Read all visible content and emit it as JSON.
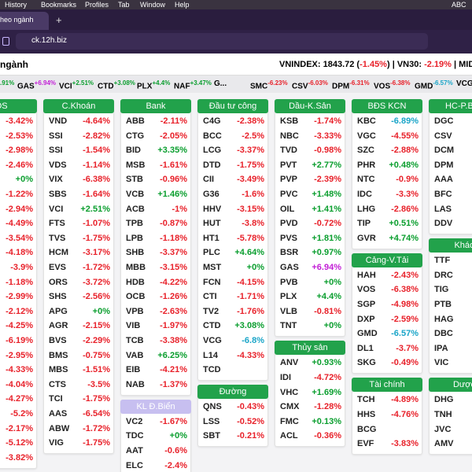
{
  "menu_bar": {
    "items": [
      "History",
      "Bookmarks",
      "Profiles",
      "Tab",
      "Window",
      "Help"
    ],
    "input": "ABC"
  },
  "browser": {
    "tab": "heo ngành",
    "new_tab": "+",
    "url": "ck.12h.biz"
  },
  "header": {
    "title": "ngành",
    "index_line": [
      {
        "text": "VNINDEX: 1843.72 ("
      },
      {
        "text": "-1.45%",
        "color": "#e8212a"
      },
      {
        "text": ") | VN30: "
      },
      {
        "text": "-2.19%",
        "color": "#e8212a"
      },
      {
        "text": " | MIDC"
      }
    ]
  },
  "ticker": [
    {
      "change": ".91%",
      "color": "#0a9e2e"
    },
    {
      "symbol": "GAS",
      "change": "+6.94%",
      "color": "#c21fd6"
    },
    {
      "symbol": "VCI",
      "change": "+2.51%",
      "color": "#0a9e2e"
    },
    {
      "symbol": "CTD",
      "change": "+3.08%",
      "color": "#0a9e2e"
    },
    {
      "symbol": "PLX",
      "change": "+4.4%",
      "color": "#0a9e2e"
    },
    {
      "symbol": "NAF",
      "change": "+3.47%",
      "color": "#0a9e2e"
    },
    {
      "symbol": "G..."
    },
    {
      "symbol": "SMC",
      "change": "-6.23%",
      "color": "#e8212a"
    },
    {
      "symbol": "CSV",
      "change": "-6.03%",
      "color": "#e8212a"
    },
    {
      "symbol": "DPM",
      "change": "-6.31%",
      "color": "#e8212a"
    },
    {
      "symbol": "VOS",
      "change": "-6.38%",
      "color": "#e8212a"
    },
    {
      "symbol": "GMD",
      "change": "-6.57%",
      "color": "#1aa5c8"
    },
    {
      "symbol": "VCG"
    }
  ],
  "columns": [
    {
      "sections": [
        {
          "title": "ĐS",
          "rows": [
            {
              "change": "-3.42%"
            },
            {
              "change": "-2.53%"
            },
            {
              "change": "-2.98%"
            },
            {
              "change": "-2.46%"
            },
            {
              "change": "+0%"
            },
            {
              "change": "-1.22%"
            },
            {
              "change": "-2.94%"
            },
            {
              "change": "-4.49%"
            },
            {
              "change": "-3.54%"
            },
            {
              "change": "-4.18%"
            },
            {
              "change": "-3.9%"
            },
            {
              "change": "-1.18%"
            },
            {
              "change": "-2.99%"
            },
            {
              "change": "-2.12%"
            },
            {
              "change": "-4.25%"
            },
            {
              "change": "-6.19%"
            },
            {
              "change": "-2.95%"
            },
            {
              "change": "-4.33%"
            },
            {
              "change": "-4.04%"
            },
            {
              "change": "-4.27%"
            },
            {
              "change": "-5.2%"
            },
            {
              "change": "-2.17%"
            },
            {
              "change": "-5.12%"
            },
            {
              "change": "-3.82%"
            }
          ]
        }
      ]
    },
    {
      "sections": [
        {
          "title": "C.Khoán",
          "rows": [
            {
              "symbol": "VND",
              "change": "-4.64%"
            },
            {
              "symbol": "SSI",
              "change": "-2.82%"
            },
            {
              "symbol": "SSI",
              "change": "-1.54%"
            },
            {
              "symbol": "VDS",
              "change": "-1.14%"
            },
            {
              "symbol": "VIX",
              "change": "-6.38%"
            },
            {
              "symbol": "SBS",
              "change": "-1.64%"
            },
            {
              "symbol": "VCI",
              "change": "+2.51%"
            },
            {
              "symbol": "FTS",
              "change": "-1.07%"
            },
            {
              "symbol": "TVS",
              "change": "-1.75%"
            },
            {
              "symbol": "HCM",
              "change": "-3.17%"
            },
            {
              "symbol": "EVS",
              "change": "-1.72%"
            },
            {
              "symbol": "ORS",
              "change": "-3.72%"
            },
            {
              "symbol": "SHS",
              "change": "-2.56%"
            },
            {
              "symbol": "APG",
              "change": "+0%"
            },
            {
              "symbol": "AGR",
              "change": "-2.15%"
            },
            {
              "symbol": "BVS",
              "change": "-2.29%"
            },
            {
              "symbol": "BMS",
              "change": "-0.75%"
            },
            {
              "symbol": "MBS",
              "change": "-1.51%"
            },
            {
              "symbol": "CTS",
              "change": "-3.5%"
            },
            {
              "symbol": "TCI",
              "change": "-1.75%"
            },
            {
              "symbol": "AAS",
              "change": "-6.54%"
            },
            {
              "symbol": "ABW",
              "change": "-1.72%"
            },
            {
              "symbol": "VIG",
              "change": "-1.75%"
            }
          ]
        }
      ]
    },
    {
      "sections": [
        {
          "title": "Bank",
          "rows": [
            {
              "symbol": "ABB",
              "change": "-2.11%"
            },
            {
              "symbol": "CTG",
              "change": "-2.05%"
            },
            {
              "symbol": "BID",
              "change": "+3.35%"
            },
            {
              "symbol": "MSB",
              "change": "-1.61%"
            },
            {
              "symbol": "STB",
              "change": "-0.96%"
            },
            {
              "symbol": "VCB",
              "change": "+1.46%"
            },
            {
              "symbol": "ACB",
              "change": "-1%"
            },
            {
              "symbol": "TPB",
              "change": "-0.87%"
            },
            {
              "symbol": "LPB",
              "change": "-1.18%"
            },
            {
              "symbol": "SHB",
              "change": "-3.37%"
            },
            {
              "symbol": "MBB",
              "change": "-3.15%"
            },
            {
              "symbol": "HDB",
              "change": "-4.22%"
            },
            {
              "symbol": "OCB",
              "change": "-1.26%"
            },
            {
              "symbol": "VPB",
              "change": "-2.63%"
            },
            {
              "symbol": "VIB",
              "change": "-1.97%"
            },
            {
              "symbol": "TCB",
              "change": "-3.38%"
            },
            {
              "symbol": "VAB",
              "change": "+6.25%"
            },
            {
              "symbol": "EIB",
              "change": "-4.21%"
            },
            {
              "symbol": "NAB",
              "change": "-1.37%"
            }
          ]
        },
        {
          "title": "KL Đ.Biển",
          "color": "#c7bff0",
          "rows": [
            {
              "symbol": "VC2",
              "change": "-1.67%"
            },
            {
              "symbol": "TDC",
              "change": "+0%"
            },
            {
              "symbol": "AAT",
              "change": "-0.6%"
            },
            {
              "symbol": "ELC",
              "change": "-2.4%"
            }
          ]
        }
      ]
    },
    {
      "sections": [
        {
          "title": "Đầu tư công",
          "rows": [
            {
              "symbol": "C4G",
              "change": "-2.38%"
            },
            {
              "symbol": "BCC",
              "change": "-2.5%"
            },
            {
              "symbol": "LCG",
              "change": "-3.37%"
            },
            {
              "symbol": "DTD",
              "change": "-1.75%"
            },
            {
              "symbol": "CII",
              "change": "-3.49%"
            },
            {
              "symbol": "G36",
              "change": "-1.6%"
            },
            {
              "symbol": "HHV",
              "change": "-3.15%"
            },
            {
              "symbol": "HUT",
              "change": "-3.8%"
            },
            {
              "symbol": "HT1",
              "change": "-5.78%"
            },
            {
              "symbol": "PLC",
              "change": "+4.64%"
            },
            {
              "symbol": "MST",
              "change": "+0%"
            },
            {
              "symbol": "FCN",
              "change": "-4.15%"
            },
            {
              "symbol": "CTI",
              "change": "-1.71%"
            },
            {
              "symbol": "TV2",
              "change": "-1.76%"
            },
            {
              "symbol": "CTD",
              "change": "+3.08%"
            },
            {
              "symbol": "VCG",
              "change": "-6.8%",
              "color": "#1aa5c8"
            },
            {
              "symbol": "L14",
              "change": "-4.33%"
            },
            {
              "symbol": "TCD"
            }
          ]
        },
        {
          "title": "Đường",
          "rows": [
            {
              "symbol": "QNS",
              "change": "-0.43%"
            },
            {
              "symbol": "LSS",
              "change": "-0.52%"
            },
            {
              "symbol": "SBT",
              "change": "-0.21%"
            }
          ]
        }
      ]
    },
    {
      "sections": [
        {
          "title": "Dầu-K.Sản",
          "rows": [
            {
              "symbol": "KSB",
              "change": "-1.74%"
            },
            {
              "symbol": "NBC",
              "change": "-3.33%"
            },
            {
              "symbol": "TVD",
              "change": "-0.98%"
            },
            {
              "symbol": "PVT",
              "change": "+2.77%"
            },
            {
              "symbol": "PVP",
              "change": "-2.39%"
            },
            {
              "symbol": "PVC",
              "change": "+1.48%"
            },
            {
              "symbol": "OIL",
              "change": "+1.41%"
            },
            {
              "symbol": "PVD",
              "change": "-0.72%"
            },
            {
              "symbol": "PVS",
              "change": "+1.81%"
            },
            {
              "symbol": "BSR",
              "change": "+0.97%"
            },
            {
              "symbol": "GAS",
              "change": "+6.94%",
              "color": "#c21fd6"
            },
            {
              "symbol": "PVB",
              "change": "+0%"
            },
            {
              "symbol": "PLX",
              "change": "+4.4%"
            },
            {
              "symbol": "VLB",
              "change": "-0.81%"
            },
            {
              "symbol": "TNT",
              "change": "+0%"
            }
          ]
        },
        {
          "title": "Thủy sản",
          "rows": [
            {
              "symbol": "ANV",
              "change": "+0.93%"
            },
            {
              "symbol": "IDI",
              "change": "-4.72%"
            },
            {
              "symbol": "VHC",
              "change": "+1.69%"
            },
            {
              "symbol": "CMX",
              "change": "-1.28%"
            },
            {
              "symbol": "FMC",
              "change": "+0.13%"
            },
            {
              "symbol": "ACL",
              "change": "-0.36%"
            }
          ]
        }
      ]
    },
    {
      "sections": [
        {
          "title": "BĐS KCN",
          "rows": [
            {
              "symbol": "KBC",
              "change": "-6.89%",
              "color": "#1aa5c8"
            },
            {
              "symbol": "VGC",
              "change": "-4.55%"
            },
            {
              "symbol": "SZC",
              "change": "-2.88%"
            },
            {
              "symbol": "PHR",
              "change": "+0.48%"
            },
            {
              "symbol": "NTC",
              "change": "-0.9%"
            },
            {
              "symbol": "IDC",
              "change": "-3.3%"
            },
            {
              "symbol": "LHG",
              "change": "-2.86%"
            },
            {
              "symbol": "TIP",
              "change": "+0.51%"
            },
            {
              "symbol": "GVR",
              "change": "+4.74%"
            }
          ]
        },
        {
          "title": "Cảng-V.Tải",
          "rows": [
            {
              "symbol": "HAH",
              "change": "-2.43%"
            },
            {
              "symbol": "VOS",
              "change": "-6.38%"
            },
            {
              "symbol": "SGP",
              "change": "-4.98%"
            },
            {
              "symbol": "DXP",
              "change": "-2.59%"
            },
            {
              "symbol": "GMD",
              "change": "-6.57%",
              "color": "#1aa5c8"
            },
            {
              "symbol": "DL1",
              "change": "-3.7%"
            },
            {
              "symbol": "SKG",
              "change": "-0.49%"
            }
          ]
        },
        {
          "title": "Tài chính",
          "rows": [
            {
              "symbol": "TCH",
              "change": "-4.89%"
            },
            {
              "symbol": "HHS",
              "change": "-4.76%"
            },
            {
              "symbol": "BCG"
            },
            {
              "symbol": "EVF",
              "change": "-3.83%"
            }
          ]
        }
      ]
    },
    {
      "sections": [
        {
          "title": "HC-P.Bón",
          "rows": [
            {
              "symbol": "DGC"
            },
            {
              "symbol": "CSV"
            },
            {
              "symbol": "DCM"
            },
            {
              "symbol": "DPM"
            },
            {
              "symbol": "AAA"
            },
            {
              "symbol": "BFC"
            },
            {
              "symbol": "LAS"
            },
            {
              "symbol": "DDV"
            }
          ]
        },
        {
          "title": "Khác",
          "rows": [
            {
              "symbol": "TTF"
            },
            {
              "symbol": "DRC"
            },
            {
              "symbol": "TIG"
            },
            {
              "symbol": "PTB"
            },
            {
              "symbol": "HAG"
            },
            {
              "symbol": "DBC"
            },
            {
              "symbol": "IPA"
            },
            {
              "symbol": "VIC"
            }
          ]
        },
        {
          "title": "Dược",
          "rows": [
            {
              "symbol": "DHG"
            },
            {
              "symbol": "TNH"
            },
            {
              "symbol": "JVC"
            },
            {
              "symbol": "AMV"
            }
          ]
        }
      ]
    }
  ]
}
